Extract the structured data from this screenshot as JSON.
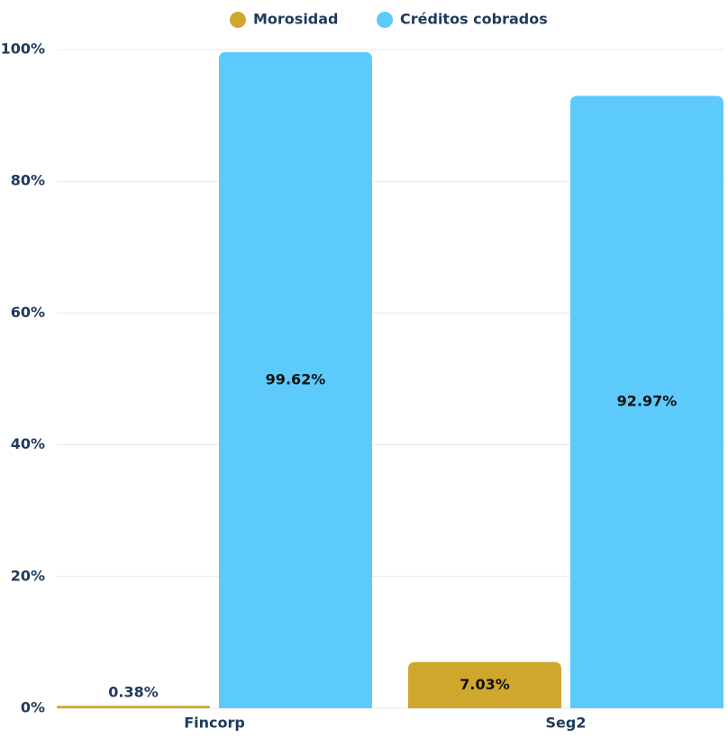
{
  "chart_data": {
    "type": "bar",
    "categories": [
      "Fincorp",
      "Seg2"
    ],
    "series": [
      {
        "name": "Morosidad",
        "color": "#cfa72c",
        "values": [
          0.38,
          7.03
        ],
        "value_labels": [
          "0.38%",
          "7.03%"
        ]
      },
      {
        "name": "Créditos cobrados",
        "color": "#5ccbfc",
        "values": [
          99.62,
          92.97
        ],
        "value_labels": [
          "99.62%",
          "92.97%"
        ]
      }
    ],
    "ylim": [
      0,
      100
    ],
    "yticks": [
      {
        "value": 0,
        "label": "0%"
      },
      {
        "value": 20,
        "label": "20%"
      },
      {
        "value": 40,
        "label": "40%"
      },
      {
        "value": 60,
        "label": "60%"
      },
      {
        "value": 80,
        "label": "80%"
      },
      {
        "value": 100,
        "label": "100%"
      }
    ],
    "grid": true,
    "legend": "top"
  }
}
